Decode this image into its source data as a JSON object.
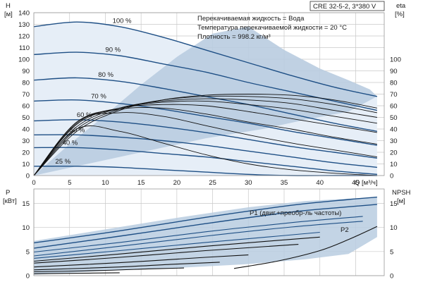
{
  "colors": {
    "curve": "#1e4f85",
    "eta_curve": "#111111",
    "region_dark": "#b9cce0",
    "region_light": "#e6eef7",
    "grid": "#c8c8c8"
  },
  "chart_data": [
    {
      "type": "line",
      "title": "CRE 32-5-2, 3*380 V",
      "info_lines": [
        "Перекачиваемая жидкость = Вода",
        "Температура перекачиваемой жидкости = 20 °C",
        "Плотность = 998.2 кг/м³"
      ],
      "xlabel": "Q [м³/ч]",
      "x_ticks": [
        "0",
        "5",
        "10",
        "15",
        "20",
        "25",
        "30",
        "35",
        "40",
        "45"
      ],
      "xlim": [
        0,
        49
      ],
      "ylabel_left": {
        "symbol": "H",
        "unit": "[м]"
      },
      "y_ticks_left": [
        "0",
        "10",
        "20",
        "30",
        "40",
        "50",
        "60",
        "70",
        "80",
        "90",
        "100",
        "110",
        "120",
        "130",
        "140"
      ],
      "ylim_left": [
        0,
        140
      ],
      "ylabel_right": {
        "symbol": "eta",
        "unit": "[%]"
      },
      "y_ticks_right": [
        "0",
        "10",
        "20",
        "30",
        "40",
        "50",
        "60",
        "70",
        "80",
        "90",
        "100"
      ],
      "ylim_right": [
        0,
        140
      ],
      "speed_labels": [
        "100 %",
        "90 %",
        "80 %",
        "70 %",
        "60 %",
        "50 %",
        "40 %",
        "25 %"
      ],
      "head_curves": [
        {
          "name": "100 %",
          "x": [
            0,
            6,
            12,
            18,
            24,
            30,
            36,
            42,
            48
          ],
          "y": [
            128,
            132,
            128,
            119,
            108,
            97,
            86,
            76,
            68
          ]
        },
        {
          "name": "90 %",
          "x": [
            0,
            6,
            12,
            18,
            24,
            30,
            36,
            42,
            48
          ],
          "y": [
            104,
            106,
            103,
            96,
            89,
            80,
            72,
            64,
            56
          ]
        },
        {
          "name": "80 %",
          "x": [
            0,
            6,
            12,
            18,
            24,
            30,
            36,
            42,
            48
          ],
          "y": [
            82,
            84,
            81,
            75,
            68,
            61,
            53,
            45,
            38
          ]
        },
        {
          "name": "70 %",
          "x": [
            0,
            6,
            12,
            18,
            24,
            30,
            36,
            42,
            48
          ],
          "y": [
            64,
            65,
            62,
            57,
            51,
            45,
            38,
            32,
            26
          ]
        },
        {
          "name": "60 %",
          "x": [
            0,
            6,
            12,
            18,
            24,
            30,
            36,
            42,
            48
          ],
          "y": [
            47,
            48,
            46,
            42,
            37,
            31,
            25,
            20,
            15
          ]
        },
        {
          "name": "50 %",
          "x": [
            0,
            6,
            12,
            18,
            24,
            30,
            36,
            42,
            48
          ],
          "y": [
            35,
            35,
            33,
            30,
            26,
            21,
            16,
            11,
            7
          ]
        },
        {
          "name": "40 %",
          "x": [
            0,
            6,
            12,
            18,
            24,
            30,
            36,
            42,
            48
          ],
          "y": [
            24,
            24,
            22,
            19,
            16,
            12,
            8,
            4,
            1
          ]
        },
        {
          "name": "25 %",
          "x": [
            0,
            6,
            12,
            18,
            24,
            30,
            36,
            42,
            48
          ],
          "y": [
            8,
            8,
            7,
            5,
            3,
            1,
            0,
            0,
            0
          ]
        }
      ],
      "eta_curves": [
        {
          "name": "eta 100 %",
          "x": [
            0,
            6,
            12,
            18,
            24,
            30,
            36,
            42,
            48
          ],
          "y": [
            0,
            38,
            56,
            65,
            69,
            70,
            69,
            65,
            58
          ]
        },
        {
          "name": "eta 90 %",
          "x": [
            0,
            6,
            12,
            18,
            24,
            30,
            36,
            42,
            48
          ],
          "y": [
            0,
            40,
            57,
            65,
            68,
            68,
            66,
            61,
            54
          ]
        },
        {
          "name": "eta 80 %",
          "x": [
            0,
            6,
            12,
            18,
            24,
            30,
            36,
            42,
            48
          ],
          "y": [
            0,
            42,
            58,
            64,
            66,
            65,
            62,
            56,
            50
          ]
        },
        {
          "name": "eta 70 %",
          "x": [
            0,
            6,
            12,
            18,
            24,
            30,
            36,
            42,
            48
          ],
          "y": [
            0,
            44,
            58,
            63,
            64,
            61,
            57,
            51,
            45
          ]
        },
        {
          "name": "eta 60 %",
          "x": [
            0,
            6,
            12,
            18,
            24,
            30,
            36,
            42,
            48
          ],
          "y": [
            0,
            45,
            58,
            61,
            60,
            55,
            49,
            43,
            37
          ]
        },
        {
          "name": "eta 50 %",
          "x": [
            0,
            6,
            12,
            18,
            24,
            30,
            36,
            42,
            48
          ],
          "y": [
            0,
            46,
            57,
            58,
            53,
            46,
            40,
            33,
            27
          ]
        },
        {
          "name": "eta 40 %",
          "x": [
            0,
            6,
            12,
            18,
            24,
            30,
            36,
            42,
            48
          ],
          "y": [
            0,
            46,
            54,
            51,
            43,
            35,
            28,
            22,
            16
          ]
        },
        {
          "name": "eta 25 %",
          "x": [
            0,
            6,
            12,
            18,
            24,
            30,
            36,
            42,
            48
          ],
          "y": [
            0,
            40,
            38,
            28,
            18,
            10,
            5,
            2,
            0
          ]
        }
      ],
      "region_polygon": {
        "x": [
          0,
          5,
          10,
          15,
          20,
          25,
          30,
          35,
          40,
          44,
          47,
          48,
          44,
          38,
          32,
          24,
          18,
          12,
          6,
          0
        ],
        "y": [
          0,
          27,
          52,
          78,
          102,
          122,
          128,
          108,
          92,
          82,
          74,
          68,
          55,
          48,
          40,
          32,
          24,
          16,
          8,
          0
        ]
      }
    },
    {
      "type": "line",
      "ylabel_left": {
        "symbol": "P",
        "unit": "[кВт]"
      },
      "y_ticks_left": [
        "0",
        "5",
        "10",
        "15"
      ],
      "ylim_left": [
        0,
        18
      ],
      "ylabel_right": {
        "symbol": "NPSH",
        "unit": "[м]"
      },
      "y_ticks_right": [
        "0",
        "5",
        "10",
        "15"
      ],
      "ylim_right": [
        0,
        18
      ],
      "xlim": [
        0,
        49
      ],
      "annotations": [
        "P1 (двиг.+преобр-ль частоты)",
        "P2"
      ],
      "power_curves": [
        {
          "name": "P1 100 %",
          "x": [
            0,
            12,
            24,
            36,
            44,
            48
          ],
          "y": [
            6.8,
            9.3,
            12.1,
            14.6,
            15.8,
            16.3
          ]
        },
        {
          "name": "P2 100 %",
          "x": [
            0,
            12,
            24,
            36,
            44,
            48
          ],
          "y": [
            5.7,
            8.2,
            10.8,
            13.2,
            14.3,
            14.8
          ]
        },
        {
          "name": "P1 90 %",
          "x": [
            0,
            12,
            24,
            36,
            46
          ],
          "y": [
            4.9,
            6.9,
            9.1,
            11.0,
            12.3
          ]
        },
        {
          "name": "P2 90 %",
          "x": [
            0,
            12,
            24,
            36,
            46
          ],
          "y": [
            4.1,
            6.1,
            8.2,
            10.1,
            11.3
          ]
        },
        {
          "name": "P1 80 %",
          "x": [
            0,
            12,
            24,
            34,
            40
          ],
          "y": [
            3.6,
            5.2,
            6.9,
            8.2,
            9.0
          ]
        },
        {
          "name": "P2 80 %",
          "x": [
            0,
            12,
            24,
            34,
            40
          ],
          "y": [
            3.0,
            4.5,
            6.1,
            7.3,
            8.0
          ]
        },
        {
          "name": "P1 70 %",
          "x": [
            0,
            12,
            24,
            32,
            37
          ],
          "y": [
            2.6,
            3.8,
            5.2,
            6.0,
            6.5
          ]
        },
        {
          "name": "P1 60 %",
          "x": [
            0,
            12,
            24,
            30
          ],
          "y": [
            1.8,
            2.7,
            3.8,
            4.3
          ]
        },
        {
          "name": "P1 50 %",
          "x": [
            0,
            12,
            20,
            26
          ],
          "y": [
            1.2,
            1.8,
            2.4,
            2.8
          ]
        },
        {
          "name": "P1 40 %",
          "x": [
            0,
            10,
            16,
            21
          ],
          "y": [
            0.8,
            1.1,
            1.4,
            1.6
          ]
        },
        {
          "name": "P1 25 %",
          "x": [
            0,
            6,
            12
          ],
          "y": [
            0.4,
            0.5,
            0.6
          ]
        }
      ],
      "npsh_curve": {
        "name": "NPSH",
        "x": [
          28,
          34,
          40,
          44,
          48
        ],
        "y": [
          1.5,
          3.0,
          5.2,
          7.5,
          10.2
        ]
      },
      "region_polygon": {
        "x": [
          0,
          10,
          20,
          30,
          38,
          44,
          48,
          48,
          44,
          38,
          30,
          20,
          10,
          0
        ],
        "y": [
          7.2,
          9.6,
          12.0,
          14.2,
          15.5,
          16.0,
          16.2,
          8.0,
          4.5,
          3.4,
          2.4,
          1.6,
          1.0,
          0.2
        ]
      }
    }
  ]
}
